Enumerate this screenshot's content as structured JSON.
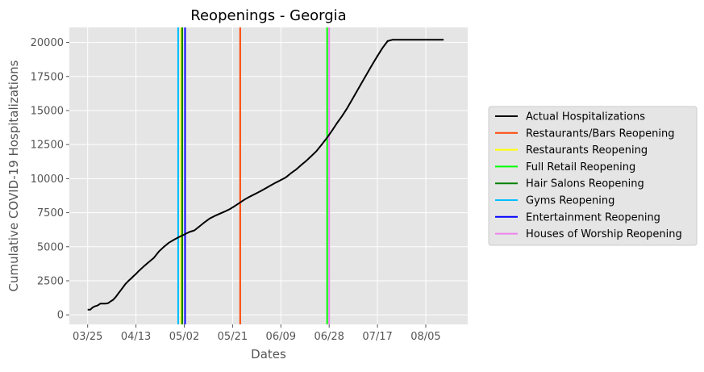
{
  "chart_data": {
    "type": "line",
    "title": "Reopenings - Georgia",
    "xlabel": "Dates",
    "ylabel": "Cumulative COVID-19 Hospitalizations",
    "x_tick_labels": [
      "03/25",
      "04/13",
      "05/02",
      "05/21",
      "06/09",
      "06/28",
      "07/17",
      "08/05"
    ],
    "x_tick_days": [
      0,
      19,
      38,
      57,
      76,
      95,
      114,
      133
    ],
    "xlim_days": [
      -7.2,
      149.5
    ],
    "y_ticks": [
      0,
      2500,
      5000,
      7500,
      10000,
      12500,
      15000,
      17500,
      20000
    ],
    "y_tick_labels": [
      "0",
      "2500",
      "5000",
      "7500",
      "10000",
      "12500",
      "15000",
      "17500",
      "20000"
    ],
    "ylim": [
      -700,
      21100
    ],
    "grid": true,
    "legend_position": "outside-right",
    "series": [
      {
        "name": "Actual Hospitalizations",
        "color": "#000000",
        "x_days": [
          0,
          1,
          2,
          3,
          4,
          5,
          6,
          7,
          8,
          9,
          10,
          11,
          12,
          13,
          14,
          15,
          16,
          17,
          18,
          19,
          20,
          22,
          24,
          26,
          28,
          30,
          32,
          34,
          36,
          38,
          40,
          42,
          44,
          46,
          48,
          50,
          52,
          54,
          56,
          58,
          60,
          62,
          64,
          66,
          68,
          70,
          72,
          74,
          76,
          78,
          80,
          82,
          84,
          86,
          88,
          90,
          92,
          94,
          96,
          98,
          100,
          102,
          104,
          106,
          108,
          110,
          112,
          114,
          116,
          118,
          120,
          122,
          124,
          126,
          128,
          130,
          132,
          134,
          136,
          138,
          140
        ],
        "values": [
          380,
          380,
          550,
          640,
          700,
          830,
          830,
          830,
          850,
          990,
          1100,
          1300,
          1550,
          1800,
          2050,
          2300,
          2480,
          2650,
          2830,
          3000,
          3200,
          3550,
          3870,
          4180,
          4650,
          5000,
          5300,
          5520,
          5720,
          5900,
          6080,
          6200,
          6500,
          6800,
          7070,
          7260,
          7430,
          7590,
          7770,
          8000,
          8250,
          8500,
          8700,
          8890,
          9080,
          9290,
          9500,
          9710,
          9900,
          10100,
          10400,
          10670,
          11000,
          11310,
          11660,
          12020,
          12480,
          12960,
          13480,
          14050,
          14580,
          15150,
          15800,
          16450,
          17100,
          17750,
          18390,
          19010,
          19600,
          20100,
          20200,
          20200,
          20200,
          20200,
          20200,
          20200,
          20200,
          20200,
          20200,
          20200,
          20200
        ]
      }
    ],
    "series_end_day": 141,
    "vertical_lines": [
      {
        "name": "Restaurants/Bars Reopening",
        "day": 60,
        "color": "#ff4500"
      },
      {
        "name": "Restaurants Reopening",
        "day": 36.8,
        "color": "#ffff00"
      },
      {
        "name": "Full Retail Reopening",
        "day": 94.2,
        "color": "#00ff00"
      },
      {
        "name": "Hair Salons Reopening",
        "day": 37.2,
        "color": "#008000"
      },
      {
        "name": "Gyms Reopening",
        "day": 35.6,
        "color": "#00bfff"
      },
      {
        "name": "Entertainment Reopening",
        "day": 38.3,
        "color": "#0000ff"
      },
      {
        "name": "Houses of Worship Reopening",
        "day": 95.0,
        "color": "#ee82ee"
      }
    ],
    "legend": [
      {
        "label": "Actual Hospitalizations",
        "color": "#000000"
      },
      {
        "label": "Restaurants/Bars Reopening",
        "color": "#ff4500"
      },
      {
        "label": "Restaurants Reopening",
        "color": "#ffff00"
      },
      {
        "label": "Full Retail Reopening",
        "color": "#00ff00"
      },
      {
        "label": "Hair Salons Reopening",
        "color": "#008000"
      },
      {
        "label": "Gyms Reopening",
        "color": "#00bfff"
      },
      {
        "label": "Entertainment Reopening",
        "color": "#0000ff"
      },
      {
        "label": "Houses of Worship Reopening",
        "color": "#ee82ee"
      }
    ]
  }
}
